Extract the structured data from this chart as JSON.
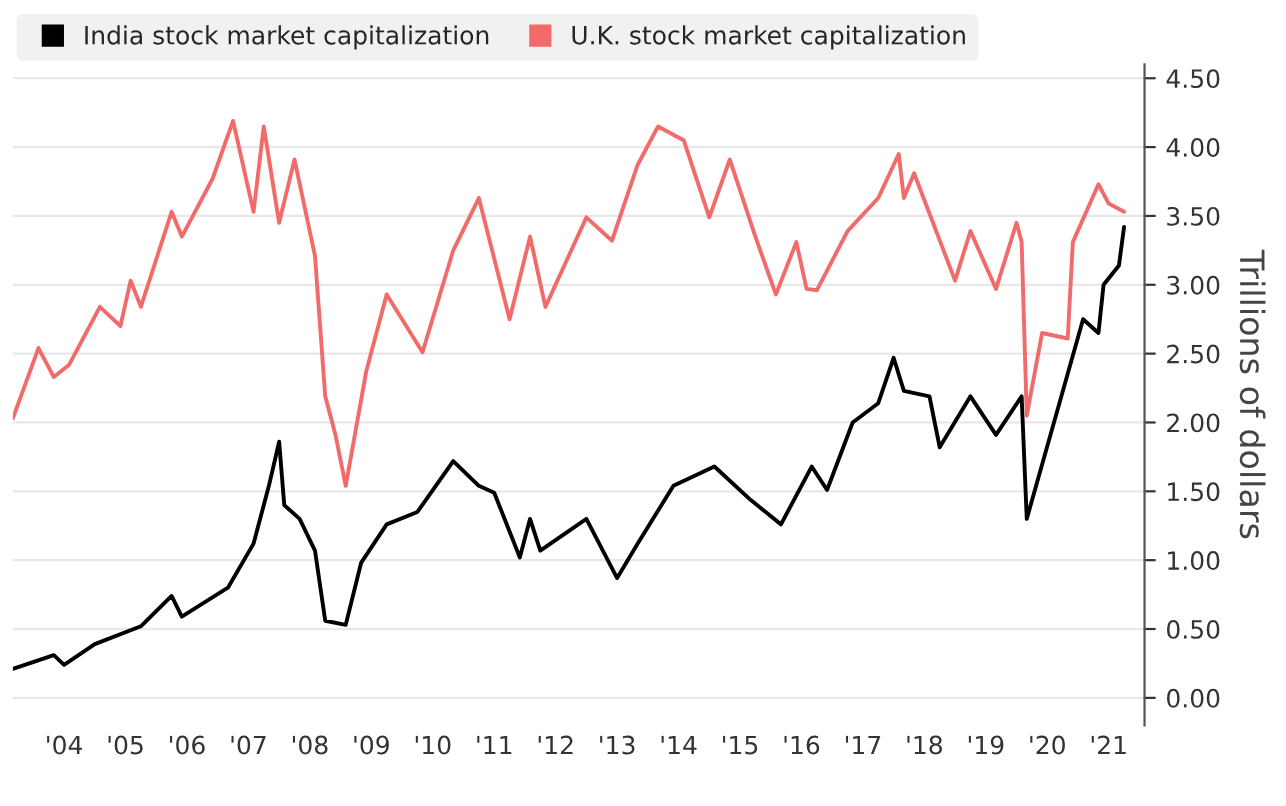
{
  "chart_data": {
    "type": "line",
    "ylabel": "Trillions of dollars",
    "xlim": [
      "2003-09",
      "2022-02"
    ],
    "xticks": [
      {
        "value": "2004-07",
        "label": "'04"
      },
      {
        "value": "2005-07",
        "label": "'05"
      },
      {
        "value": "2006-07",
        "label": "'06"
      },
      {
        "value": "2007-07",
        "label": "'07"
      },
      {
        "value": "2008-07",
        "label": "'08"
      },
      {
        "value": "2009-07",
        "label": "'09"
      },
      {
        "value": "2010-07",
        "label": "'10"
      },
      {
        "value": "2011-07",
        "label": "'11"
      },
      {
        "value": "2012-07",
        "label": "'12"
      },
      {
        "value": "2013-07",
        "label": "'13"
      },
      {
        "value": "2014-07",
        "label": "'14"
      },
      {
        "value": "2015-07",
        "label": "'15"
      },
      {
        "value": "2016-07",
        "label": "'16"
      },
      {
        "value": "2017-07",
        "label": "'17"
      },
      {
        "value": "2018-07",
        "label": "'18"
      },
      {
        "value": "2019-07",
        "label": "'19"
      },
      {
        "value": "2020-07",
        "label": "'20"
      },
      {
        "value": "2021-07",
        "label": "'21"
      }
    ],
    "ylim": [
      -0.2,
      4.6
    ],
    "yticks": [
      {
        "value": 0,
        "label": "0.00"
      },
      {
        "value": 0.5,
        "label": "0.50"
      },
      {
        "value": 1,
        "label": "1.00"
      },
      {
        "value": 1.5,
        "label": "1.50"
      },
      {
        "value": 2,
        "label": "2.00"
      },
      {
        "value": 2.5,
        "label": "2.50"
      },
      {
        "value": 3,
        "label": "3.00"
      },
      {
        "value": 3.5,
        "label": "3.50"
      },
      {
        "value": 4,
        "label": "4.00"
      },
      {
        "value": 4.5,
        "label": "4.50"
      }
    ],
    "grid": "y",
    "legend": "top left",
    "line_style": "solid",
    "series": [
      {
        "name": "India stock market capitalization",
        "color": "#000000",
        "x": [
          "2003-09",
          "2004-05",
          "2004-07",
          "2005-01",
          "2005-10",
          "2006-04",
          "2006-06",
          "2007-03",
          "2007-08",
          "2007-11",
          "2008-01",
          "2008-02",
          "2008-05",
          "2008-08",
          "2008-10",
          "2009-02",
          "2009-05",
          "2009-10",
          "2010-04",
          "2010-11",
          "2011-04",
          "2011-07",
          "2011-12",
          "2012-02",
          "2012-04",
          "2013-01",
          "2013-07",
          "2013-11",
          "2014-06",
          "2015-02",
          "2015-09",
          "2016-03",
          "2016-09",
          "2016-12",
          "2017-05",
          "2017-10",
          "2018-01",
          "2018-03",
          "2018-08",
          "2018-10",
          "2019-04",
          "2019-09",
          "2020-02",
          "2020-03",
          "2020-09",
          "2021-02",
          "2021-05",
          "2021-06",
          "2021-09",
          "2021-10"
        ],
        "values": [
          0.21,
          0.31,
          0.24,
          0.39,
          0.52,
          0.74,
          0.59,
          0.8,
          1.12,
          1.54,
          1.86,
          1.4,
          1.3,
          1.07,
          0.56,
          0.53,
          0.98,
          1.26,
          1.35,
          1.72,
          1.54,
          1.49,
          1.02,
          1.3,
          1.07,
          1.3,
          0.87,
          1.12,
          1.54,
          1.68,
          1.44,
          1.26,
          1.68,
          1.51,
          2.0,
          2.14,
          2.47,
          2.23,
          2.19,
          1.82,
          2.19,
          1.91,
          2.19,
          1.3,
          2.09,
          2.75,
          2.65,
          3.0,
          3.14,
          3.42
        ]
      },
      {
        "name": "U.K. stock market capitalization",
        "color": "#f26b6b",
        "x": [
          "2003-09",
          "2004-02",
          "2004-05",
          "2004-08",
          "2005-02",
          "2005-06",
          "2005-08",
          "2005-10",
          "2006-04",
          "2006-06",
          "2006-12",
          "2007-04",
          "2007-08",
          "2007-10",
          "2008-01",
          "2008-04",
          "2008-08",
          "2008-10",
          "2008-12",
          "2009-02",
          "2009-06",
          "2009-10",
          "2010-05",
          "2010-11",
          "2011-04",
          "2011-10",
          "2012-02",
          "2012-05",
          "2013-01",
          "2013-06",
          "2013-11",
          "2014-03",
          "2014-08",
          "2015-01",
          "2015-05",
          "2015-10",
          "2016-02",
          "2016-06",
          "2016-08",
          "2016-10",
          "2017-04",
          "2017-10",
          "2018-02",
          "2018-03",
          "2018-05",
          "2019-01",
          "2019-04",
          "2019-09",
          "2020-01",
          "2020-02",
          "2020-03",
          "2020-06",
          "2020-11",
          "2020-12",
          "2021-05",
          "2021-07",
          "2021-10"
        ],
        "values": [
          2.03,
          2.54,
          2.33,
          2.42,
          2.84,
          2.7,
          3.03,
          2.84,
          3.53,
          3.35,
          3.77,
          4.19,
          3.53,
          4.15,
          3.45,
          3.91,
          3.21,
          2.19,
          1.91,
          1.54,
          2.37,
          2.93,
          2.51,
          3.25,
          3.63,
          2.75,
          3.35,
          2.84,
          3.49,
          3.32,
          3.87,
          4.15,
          4.05,
          3.49,
          3.91,
          3.35,
          2.93,
          3.31,
          2.97,
          2.96,
          3.39,
          3.63,
          3.95,
          3.63,
          3.81,
          3.03,
          3.39,
          2.97,
          3.45,
          3.31,
          2.05,
          2.65,
          2.61,
          3.31,
          3.73,
          3.59,
          3.53
        ]
      }
    ]
  }
}
